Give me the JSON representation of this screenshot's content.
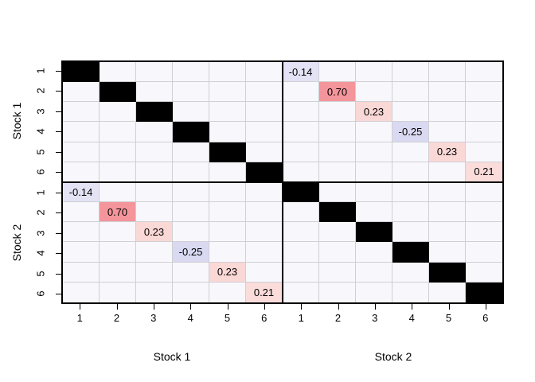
{
  "chart_data": {
    "type": "heatmap",
    "title": "",
    "description": "Correlation matrix plot: 12x12 grid of two groups (Stock 1, Stock 2) with 6 series each; main-diagonal cells are solid black; cross-group diagonal cells are labeled with correlation values and shaded red (positive) or blue (negative).",
    "grid_size": 12,
    "x_axis": {
      "titles": [
        "Stock 1",
        "Stock 2"
      ],
      "tick_labels": [
        "1",
        "2",
        "3",
        "4",
        "5",
        "6",
        "1",
        "2",
        "3",
        "4",
        "5",
        "6"
      ]
    },
    "y_axis": {
      "titles": [
        "Stock 1",
        "Stock 2"
      ],
      "tick_labels": [
        "1",
        "2",
        "3",
        "4",
        "5",
        "6",
        "1",
        "2",
        "3",
        "4",
        "5",
        "6"
      ]
    },
    "diagonal_cells": [
      [
        1,
        1
      ],
      [
        2,
        2
      ],
      [
        3,
        3
      ],
      [
        4,
        4
      ],
      [
        5,
        5
      ],
      [
        6,
        6
      ],
      [
        7,
        7
      ],
      [
        8,
        8
      ],
      [
        9,
        9
      ],
      [
        10,
        10
      ],
      [
        11,
        11
      ],
      [
        12,
        12
      ]
    ],
    "value_cells": [
      {
        "row": 1,
        "col": 7,
        "label": "-0.14",
        "value": -0.14,
        "bg": "#e3e3f5"
      },
      {
        "row": 2,
        "col": 8,
        "label": "0.70",
        "value": 0.7,
        "bg": "#f4959b"
      },
      {
        "row": 3,
        "col": 9,
        "label": "0.23",
        "value": 0.23,
        "bg": "#fad8d6"
      },
      {
        "row": 4,
        "col": 10,
        "label": "-0.25",
        "value": -0.25,
        "bg": "#d9d9f2"
      },
      {
        "row": 5,
        "col": 11,
        "label": "0.23",
        "value": 0.23,
        "bg": "#fad8d6"
      },
      {
        "row": 6,
        "col": 12,
        "label": "0.21",
        "value": 0.21,
        "bg": "#fadcda"
      },
      {
        "row": 7,
        "col": 1,
        "label": "-0.14",
        "value": -0.14,
        "bg": "#e3e3f5"
      },
      {
        "row": 8,
        "col": 2,
        "label": "0.70",
        "value": 0.7,
        "bg": "#f4959b"
      },
      {
        "row": 9,
        "col": 3,
        "label": "0.23",
        "value": 0.23,
        "bg": "#fad8d6"
      },
      {
        "row": 10,
        "col": 4,
        "label": "-0.25",
        "value": -0.25,
        "bg": "#d9d9f2"
      },
      {
        "row": 11,
        "col": 5,
        "label": "0.23",
        "value": 0.23,
        "bg": "#fad8d6"
      },
      {
        "row": 12,
        "col": 6,
        "label": "0.21",
        "value": 0.21,
        "bg": "#fadcda"
      }
    ],
    "colors": {
      "diagonal": "#000000",
      "cell_background": "#f7f7fc",
      "grid_line": "#cfcfd4",
      "frame": "#000000",
      "positive_strong": "#f4959b",
      "positive_weak": "#fad8d6",
      "negative_weak": "#e3e3f5",
      "negative_medium": "#d9d9f2"
    },
    "legend_position": "none",
    "grid": true
  }
}
